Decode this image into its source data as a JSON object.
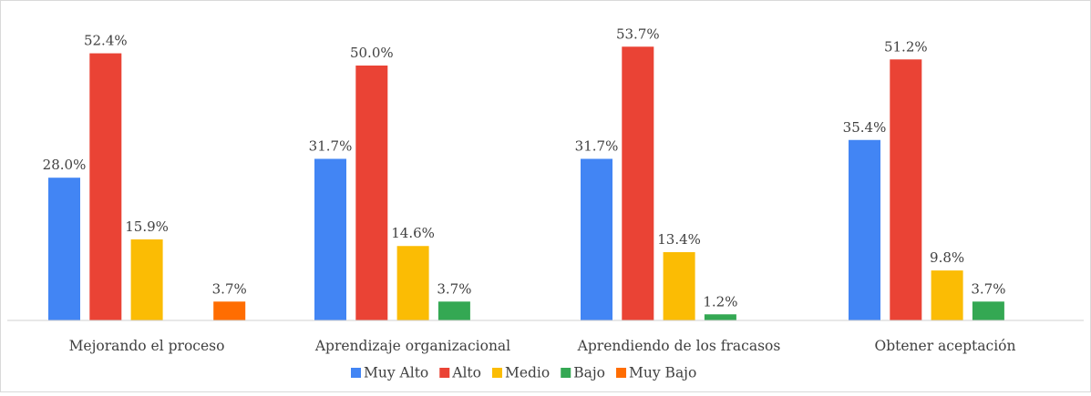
{
  "chart_data": {
    "type": "bar",
    "categories": [
      "Mejorando el proceso",
      "Aprendizaje organizacional",
      "Aprendiendo de los fracasos",
      "Obtener aceptación"
    ],
    "series": [
      {
        "name": "Muy Alto",
        "color": "#4285F4",
        "values": [
          28.0,
          31.7,
          31.7,
          35.4
        ],
        "labels": [
          "28.0%",
          "31.7%",
          "31.7%",
          "35.4%"
        ]
      },
      {
        "name": "Alto",
        "color": "#EA4335",
        "values": [
          52.4,
          50.0,
          53.7,
          51.2
        ],
        "labels": [
          "52.4%",
          "50.0%",
          "53.7%",
          "51.2%"
        ]
      },
      {
        "name": "Medio",
        "color": "#FBBC04",
        "values": [
          15.9,
          14.6,
          13.4,
          9.8
        ],
        "labels": [
          "15.9%",
          "14.6%",
          "13.4%",
          "9.8%"
        ]
      },
      {
        "name": "Bajo",
        "color": "#34A853",
        "values": [
          null,
          3.7,
          1.2,
          3.7
        ],
        "labels": [
          null,
          "3.7%",
          "1.2%",
          "3.7%"
        ]
      },
      {
        "name": "Muy Bajo",
        "color": "#FF6D01",
        "values": [
          3.7,
          null,
          null,
          null
        ],
        "labels": [
          "3.7%",
          null,
          null,
          null
        ]
      }
    ],
    "ylim": [
      0,
      60
    ],
    "grid": false,
    "legend_position": "bottom",
    "title": "",
    "xlabel": "",
    "ylabel": ""
  }
}
